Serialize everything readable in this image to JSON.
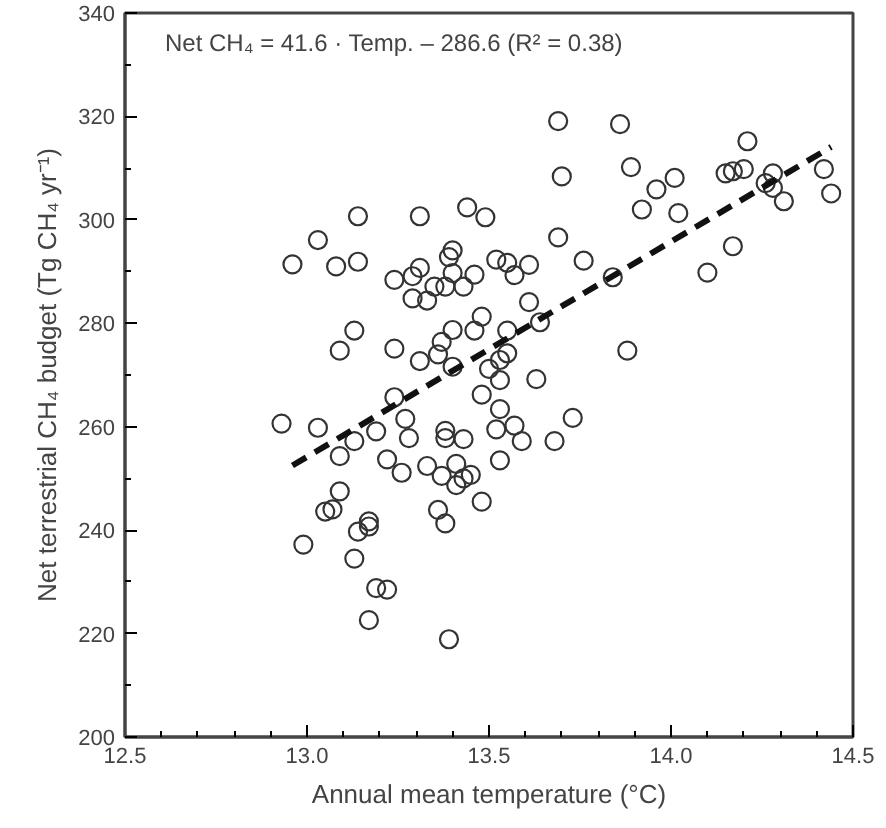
{
  "chart_data": {
    "type": "scatter",
    "xlabel": "Annual mean temperature (°C)",
    "ylabel": "Net terrestrial CH₄ budget (Tg CH₄ yr⁻¹)",
    "annotations": [
      "Net CH₄ = 41.6 · Temp. – 286.6  (R² = 0.38)"
    ],
    "xlim": [
      12.5,
      14.5
    ],
    "ylim": [
      200,
      340
    ],
    "xticks": [
      12.5,
      {
        "value": 13,
        "label": "13.0"
      },
      13.5,
      {
        "value": 14,
        "label": "14.0"
      },
      14.5
    ],
    "yticks": [
      200,
      220,
      240,
      260,
      280,
      300,
      320,
      340
    ],
    "grid": false,
    "series": [
      {
        "color": "#333333",
        "marker": "circle",
        "x": [
          12.96,
          13.03,
          13.08,
          13.14,
          13.14,
          13.31,
          13.44,
          13.49,
          13.24,
          13.29,
          13.31,
          13.4,
          13.39,
          13.4,
          13.46,
          13.29,
          13.33,
          13.35,
          13.38,
          13.43,
          13.48,
          13.52,
          13.13,
          13.09,
          13.24,
          13.31,
          13.37,
          13.36,
          13.4,
          13.46,
          13.4,
          13.5,
          13.24,
          13.48,
          13.53,
          13.69,
          13.86,
          13.7,
          13.89,
          13.96,
          14.01,
          13.92,
          14.02,
          14.21,
          14.15,
          14.17,
          14.2,
          14.28,
          14.26,
          14.28,
          14.31,
          14.42,
          14.44,
          14.17,
          14.1,
          13.69,
          13.76,
          13.84,
          13.55,
          13.61,
          13.57,
          13.61,
          13.64,
          13.55,
          13.55,
          13.53,
          13.53,
          13.63,
          13.88,
          13.73,
          12.93,
          13.03,
          13.27,
          13.19,
          13.28,
          13.38,
          13.38,
          13.43,
          13.52,
          13.13,
          13.09,
          13.22,
          13.26,
          13.33,
          13.37,
          13.41,
          13.41,
          13.43,
          13.45,
          13.48,
          13.53,
          13.09,
          13.05,
          13.07,
          13.17,
          13.17,
          13.14,
          12.99,
          13.13,
          13.36,
          13.38,
          13.19,
          13.22,
          13.17,
          13.39,
          13.57,
          13.59,
          13.68
        ],
        "values": [
          291.4,
          296.1,
          291.0,
          291.9,
          300.7,
          300.7,
          302.4,
          300.5,
          288.4,
          289.1,
          290.7,
          294.1,
          292.8,
          289.7,
          289.4,
          284.8,
          284.4,
          287.1,
          287.1,
          287.1,
          281.3,
          292.3,
          278.6,
          274.7,
          275.1,
          272.7,
          276.4,
          274.0,
          278.7,
          278.6,
          271.6,
          271.2,
          265.7,
          266.2,
          263.4,
          319.1,
          318.5,
          308.4,
          310.2,
          305.9,
          308.1,
          302.0,
          301.3,
          315.2,
          309.0,
          309.4,
          309.8,
          309.0,
          307.1,
          306.2,
          303.6,
          309.8,
          305.1,
          294.9,
          289.8,
          296.6,
          292.1,
          288.9,
          291.7,
          291.3,
          289.3,
          284.1,
          280.2,
          278.6,
          274.2,
          272.9,
          269.0,
          269.2,
          274.7,
          261.7,
          260.6,
          259.8,
          261.5,
          259.1,
          257.8,
          259.2,
          257.8,
          257.6,
          259.5,
          257.2,
          254.3,
          253.7,
          251.1,
          252.4,
          250.5,
          252.8,
          248.7,
          250.0,
          250.7,
          245.5,
          253.5,
          247.5,
          243.6,
          244.0,
          241.7,
          240.7,
          239.7,
          237.2,
          234.5,
          243.9,
          241.3,
          228.8,
          228.5,
          222.6,
          218.9,
          260.2,
          257.2,
          257.2
        ]
      },
      {
        "color": "#111111",
        "type": "line",
        "marker": "none",
        "line_style": "dashed",
        "x": [
          12.96,
          14.44
        ],
        "values": [
          252.5,
          314.1
        ]
      }
    ]
  }
}
